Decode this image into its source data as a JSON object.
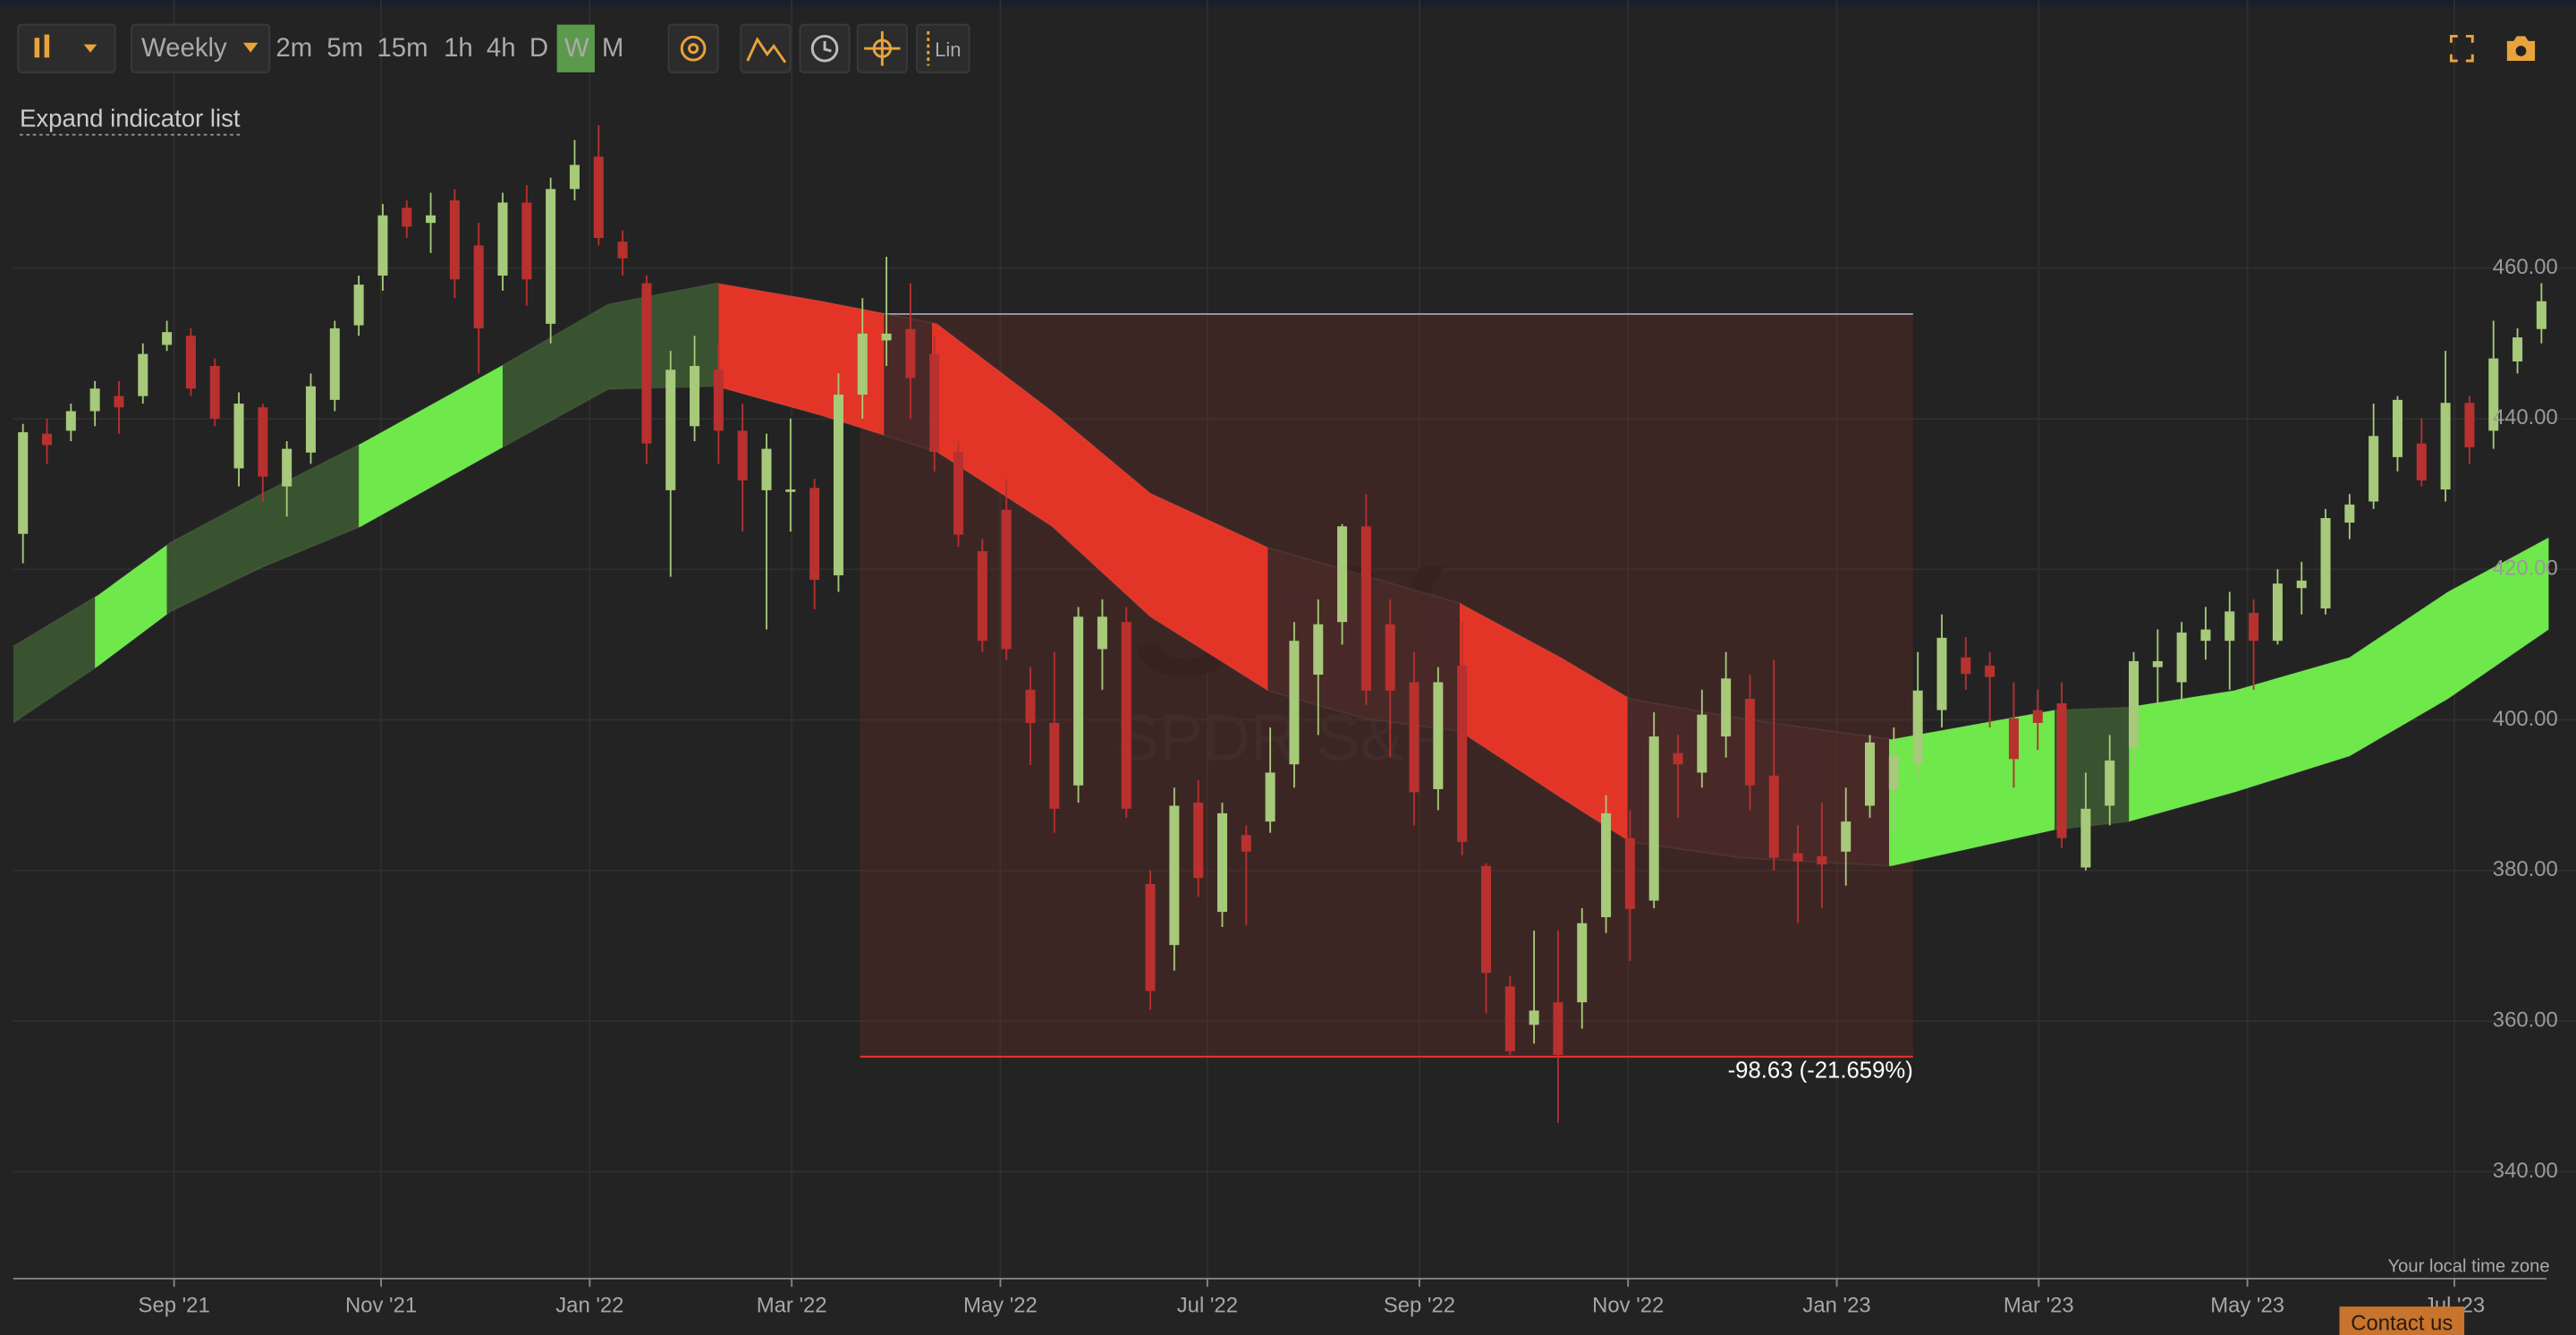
{
  "chart_data": {
    "type": "candlestick",
    "up_color": "#a6c97a",
    "down_color": "#b8312f",
    "open": [
      424.7,
      438,
      438.4,
      441,
      443,
      443,
      449.8,
      451,
      447,
      433.4,
      441.5,
      431,
      435.5,
      442.5,
      452.4,
      459,
      468,
      466,
      469,
      463,
      459,
      468.7,
      452.6,
      470.5,
      474.8,
      463.5,
      458,
      430.5,
      439,
      446.5,
      438.4,
      430.5,
      430.4,
      430.8,
      419.2,
      443.2,
      450.4,
      451.9,
      448.6,
      435.6,
      422.4,
      427.9,
      404,
      399.6,
      391.3,
      409.4,
      413,
      378.2,
      370.1,
      389,
      374.5,
      384.7,
      386.5,
      394.1,
      406,
      413,
      425.7,
      412.7,
      405,
      390.8,
      407.2,
      380.6,
      364.6,
      359.5,
      362.5,
      362.5,
      373.8,
      384.3,
      376,
      395.6,
      393,
      397.8,
      402.8,
      392.6,
      382.3,
      381.9,
      382.5,
      388.6,
      390.8,
      394.1,
      401.3,
      408.3,
      407.2,
      400.2,
      401.3,
      402.2,
      380.4,
      388.6,
      396.3,
      407,
      405,
      410.5,
      410.5,
      414.2,
      410.5,
      417.5,
      414.8,
      426.2,
      429,
      434.9,
      436.7,
      430.6,
      442.1,
      438.4,
      447.6,
      451.9
    ],
    "high": [
      439.3,
      440,
      442,
      445,
      445,
      450,
      453,
      452,
      448,
      443.5,
      442,
      437,
      446,
      453,
      459,
      468.5,
      469,
      470,
      470.5,
      466,
      470,
      471,
      472,
      477,
      479,
      465,
      459,
      449,
      451,
      450,
      442,
      438,
      440,
      432,
      446,
      456,
      461.5,
      458,
      451,
      437,
      424,
      432,
      407,
      409,
      415,
      416,
      415,
      380,
      391,
      392,
      389,
      386,
      399,
      413,
      416,
      426,
      430,
      416,
      409,
      407,
      413,
      381,
      366,
      372,
      372,
      375,
      390,
      388,
      401,
      398,
      404,
      409,
      406,
      408,
      386,
      389,
      391,
      398,
      399,
      409,
      414,
      411,
      409,
      405,
      404,
      405,
      393,
      398,
      409,
      412,
      413,
      415,
      417,
      416,
      420,
      421,
      428,
      430,
      442,
      443,
      440,
      449,
      443,
      453,
      452,
      458
    ],
    "low": [
      420.8,
      434,
      437,
      439,
      438,
      442,
      449,
      443,
      439,
      431,
      429,
      427,
      434,
      441,
      451,
      457,
      464,
      462,
      456,
      446,
      457,
      455,
      450,
      469,
      463,
      459,
      434,
      419,
      437,
      434,
      425,
      412,
      425,
      414.7,
      417,
      440,
      447,
      440,
      433,
      423,
      409,
      408,
      394,
      385,
      389,
      404,
      387,
      361.5,
      366.7,
      376.5,
      372.5,
      372.7,
      385,
      391,
      398,
      410,
      402,
      395,
      386,
      388,
      382,
      361,
      355.5,
      357,
      346.5,
      359,
      371.7,
      368,
      375,
      387,
      391,
      395,
      388,
      380,
      373,
      375,
      378,
      387,
      385,
      392,
      399,
      404,
      399,
      391,
      396,
      383,
      380,
      386,
      394,
      402,
      402,
      408,
      404,
      404,
      410,
      414,
      414,
      424,
      428,
      433,
      431,
      429,
      434,
      436,
      446,
      450
    ],
    "close": [
      438.2,
      436.5,
      441,
      444,
      441.5,
      448.6,
      451.5,
      444,
      440,
      442,
      432.3,
      436,
      444.3,
      452,
      457.8,
      467,
      465.5,
      467,
      458.5,
      452,
      468.7,
      458.5,
      470.5,
      473.7,
      464,
      461.3,
      436.7,
      446.5,
      447,
      438.4,
      431.8,
      436,
      430.6,
      418.6,
      443.2,
      451.3,
      451.3,
      445.4,
      435.6,
      424.6,
      410.5,
      409.4,
      399.6,
      388.2,
      413.7,
      413.7,
      388.2,
      364,
      388.6,
      379,
      387.6,
      382.5,
      393,
      410.5,
      412.7,
      425.7,
      403.9,
      403.9,
      390.4,
      405,
      383.8,
      366.4,
      356,
      361.4,
      355.5,
      373,
      387.6,
      374.9,
      397.8,
      394.1,
      400.7,
      405.5,
      391.3,
      381.7,
      381.2,
      380.8,
      386.5,
      397,
      395.2,
      403.9,
      410.9,
      406.1,
      405.7,
      394.8,
      399.6,
      384.3,
      388.2,
      394.6,
      407.8,
      407.8,
      411.6,
      412,
      414.4,
      410.5,
      418.1,
      418.5,
      426.8,
      428.6,
      437.7,
      442.5,
      431.8,
      442.1,
      436.2,
      448,
      450.8,
      455.6
    ],
    "band": {
      "x": [
        -0.4,
        3.15,
        6.16,
        10,
        14.1,
        20,
        24.4,
        28.9,
        33.3,
        38.1,
        42.9,
        47,
        51.9,
        55.9,
        59.9,
        64.1,
        67,
        71.6,
        77.9,
        84.7,
        87.8,
        92.2,
        97,
        101.1,
        105.3
      ],
      "upper": [
        409.8,
        416.6,
        423.6,
        430.1,
        436.7,
        447.1,
        455.2,
        458,
        455.6,
        452.6,
        441,
        430.1,
        422.9,
        419.2,
        415.5,
        408.3,
        402.8,
        400.2,
        397.4,
        401.3,
        401.7,
        403.9,
        408.3,
        417,
        424.2
      ],
      "lower": [
        399.6,
        407.2,
        414.4,
        420.3,
        425.7,
        436.2,
        443.9,
        444.3,
        440.4,
        435.6,
        425.7,
        413.7,
        403.9,
        400.2,
        398.5,
        389.7,
        383.8,
        381.7,
        380.6,
        385.4,
        386.5,
        390.4,
        395.2,
        402.8,
        412
      ],
      "segments": [
        {
          "start": -0.4,
          "end": 3.0,
          "color": "#3d5c33"
        },
        {
          "start": 3.0,
          "end": 6.0,
          "color": "#6ee84a"
        },
        {
          "start": 6.0,
          "end": 14.0,
          "color": "#3d5c33"
        },
        {
          "start": 14.0,
          "end": 20.0,
          "color": "#6ee84a"
        },
        {
          "start": 20.0,
          "end": 29.0,
          "color": "#3d5c33"
        },
        {
          "start": 29.0,
          "end": 35.9,
          "color": "#e33527"
        },
        {
          "start": 35.9,
          "end": 37.9,
          "color": "#4a2a28"
        },
        {
          "start": 37.9,
          "end": 51.9,
          "color": "#e33527"
        },
        {
          "start": 51.9,
          "end": 59.9,
          "color": "#4a2a28"
        },
        {
          "start": 59.9,
          "end": 66.9,
          "color": "#e33527"
        },
        {
          "start": 66.9,
          "end": 77.8,
          "color": "#4a2a28"
        },
        {
          "start": 77.8,
          "end": 84.7,
          "color": "#6ee84a"
        },
        {
          "start": 84.7,
          "end": 87.8,
          "color": "#3d5c33"
        },
        {
          "start": 87.8,
          "end": 105.3,
          "color": "#6ee84a"
        }
      ]
    },
    "measure": {
      "x": [
        34.9,
        78.8
      ],
      "y": [
        453.9,
        355.27
      ],
      "label": "-98.63 (-21.659%)"
    },
    "watermark_title": "SPY",
    "watermark_subtitle": "SPDR S&P",
    "xlim": [
      -0.41,
      106.44
    ],
    "ylim": [
      325.8,
      495.6
    ],
    "xticks": [
      {
        "value": 6.3,
        "label": "Sep '21"
      },
      {
        "value": 14.93,
        "label": "Nov '21"
      },
      {
        "value": 23.63,
        "label": "Jan '22"
      },
      {
        "value": 32.05,
        "label": "Mar '22"
      },
      {
        "value": 40.75,
        "label": "May '22"
      },
      {
        "value": 49.38,
        "label": "Jul '22"
      },
      {
        "value": 58.22,
        "label": "Sep '22"
      },
      {
        "value": 66.92,
        "label": "Nov '22"
      },
      {
        "value": 75.62,
        "label": "Jan '23"
      },
      {
        "value": 84.04,
        "label": "Mar '23"
      },
      {
        "value": 92.74,
        "label": "May '23"
      },
      {
        "value": 101.37,
        "label": "Jul '23"
      }
    ],
    "yticks": [
      {
        "value": 340,
        "label": "340.00"
      },
      {
        "value": 360,
        "label": "360.00"
      },
      {
        "value": 380,
        "label": "380.00"
      },
      {
        "value": 400,
        "label": "400.00"
      },
      {
        "value": 420,
        "label": "420.00"
      },
      {
        "value": 440,
        "label": "440.00"
      },
      {
        "value": 460,
        "label": "460.00"
      }
    ],
    "grid": true
  },
  "ui": {
    "interval": "Weekly",
    "intervals": [
      "2m",
      "5m",
      "15m",
      "1h",
      "4h",
      "D",
      "W",
      "M"
    ],
    "scale": "Lin",
    "expand": "Expand indicator list",
    "timezone": "Your local time zone",
    "contact": "Contact us"
  }
}
